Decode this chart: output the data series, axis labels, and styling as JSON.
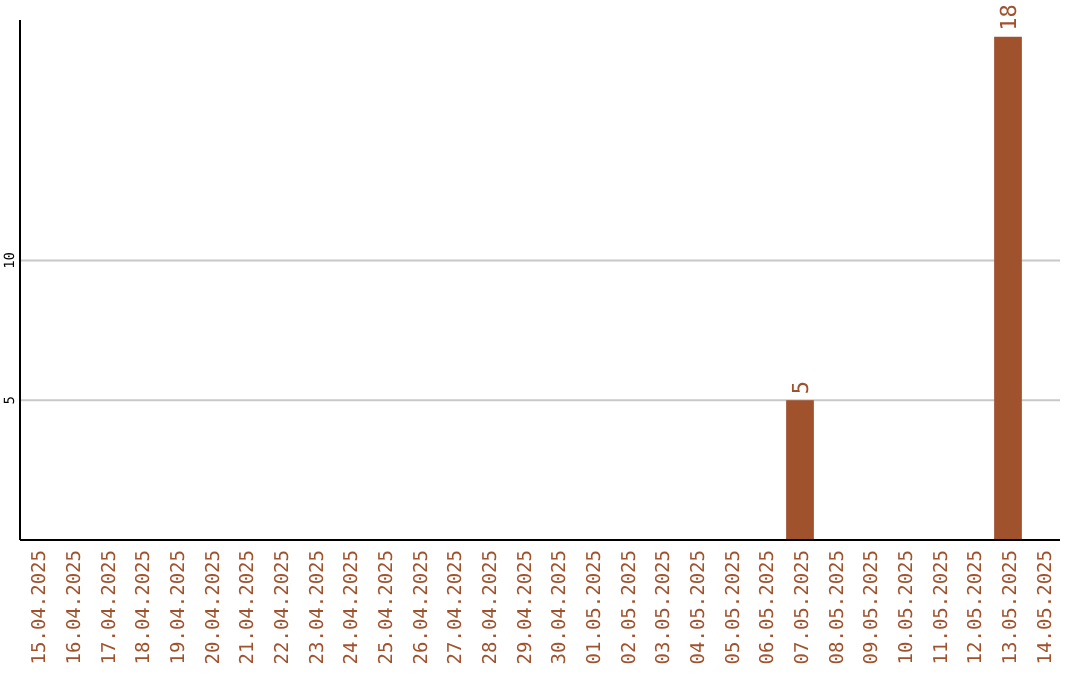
{
  "chart_data": {
    "type": "bar",
    "categories": [
      "15.04.2025",
      "16.04.2025",
      "17.04.2025",
      "18.04.2025",
      "19.04.2025",
      "20.04.2025",
      "21.04.2025",
      "22.04.2025",
      "23.04.2025",
      "24.04.2025",
      "25.04.2025",
      "26.04.2025",
      "27.04.2025",
      "28.04.2025",
      "29.04.2025",
      "30.04.2025",
      "01.05.2025",
      "02.05.2025",
      "03.05.2025",
      "04.05.2025",
      "05.05.2025",
      "06.05.2025",
      "07.05.2025",
      "08.05.2025",
      "09.05.2025",
      "10.05.2025",
      "11.05.2025",
      "12.05.2025",
      "13.05.2025",
      "14.05.2025"
    ],
    "values": [
      0,
      0,
      0,
      0,
      0,
      0,
      0,
      0,
      0,
      0,
      0,
      0,
      0,
      0,
      0,
      0,
      0,
      0,
      0,
      0,
      0,
      0,
      5,
      0,
      0,
      0,
      0,
      0,
      18,
      0
    ],
    "value_labels": [
      null,
      null,
      null,
      null,
      null,
      null,
      null,
      null,
      null,
      null,
      null,
      null,
      null,
      null,
      null,
      null,
      null,
      null,
      null,
      null,
      null,
      null,
      "5",
      null,
      null,
      null,
      null,
      null,
      "18",
      null
    ],
    "color": "#a0522d",
    "ylim": [
      0,
      18.6
    ],
    "yticks": [
      5,
      10
    ],
    "grid": "y"
  }
}
